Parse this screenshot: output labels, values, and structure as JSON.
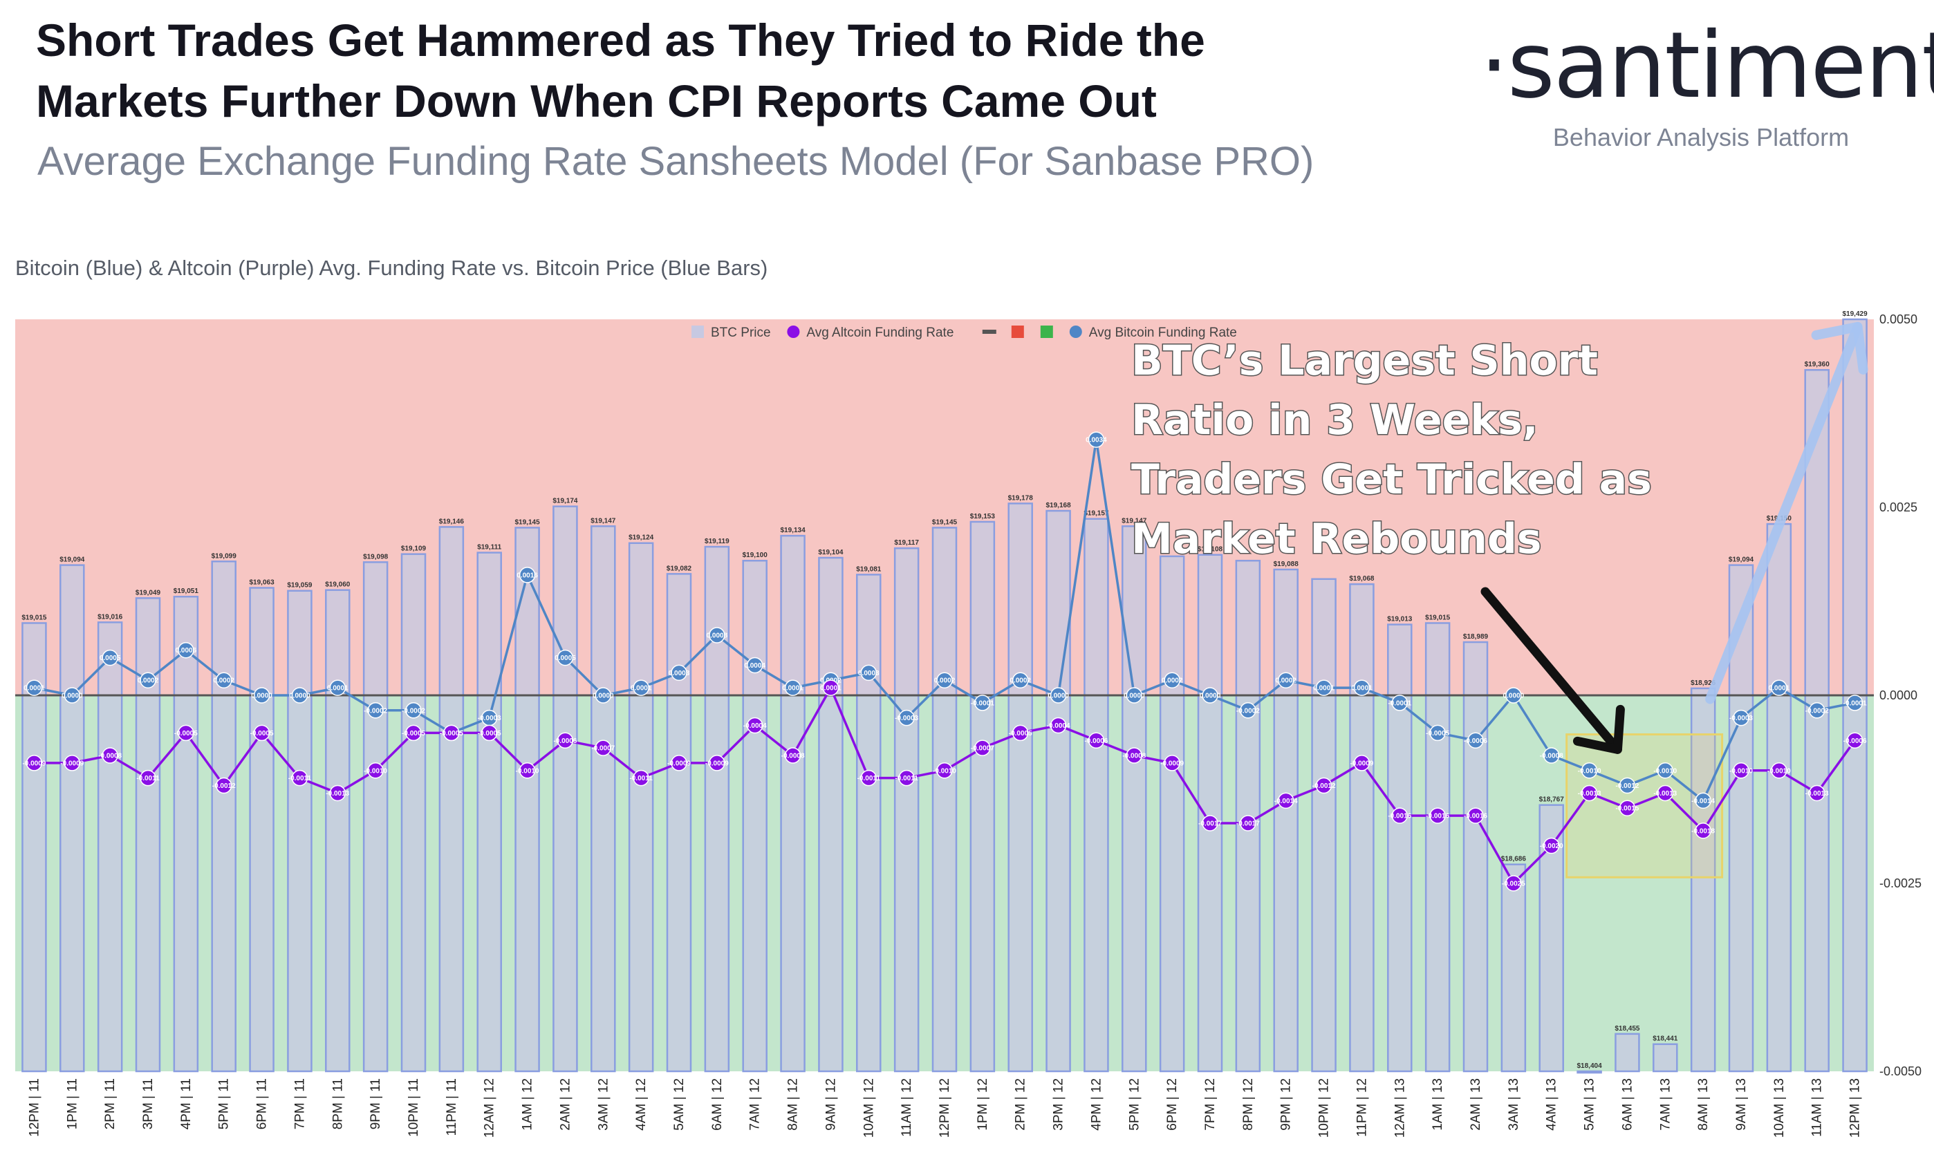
{
  "header": {
    "title": "Short Trades Get Hammered as They Tried to Ride the Markets Further Down When CPI Reports Came Out",
    "subtitle": "Average Exchange Funding Rate Sansheets Model (For Sanbase PRO)"
  },
  "brand": {
    "logo_text": "·santiment·",
    "tagline": "Behavior Analysis Platform"
  },
  "chart_caption": "Bitcoin (Blue) & Altcoin (Purple) Avg. Funding Rate vs. Bitcoin Price (Blue Bars)",
  "annotation": {
    "lines": [
      "BTC’s Largest Short",
      "Ratio in 3 Weeks,",
      "Traders Get Tricked as",
      "Market Rebounds"
    ]
  },
  "colors": {
    "positive_zone": "#f7c6c3",
    "negative_zone": "#c3e6cc",
    "bar_fill": "#c7c9e2",
    "bar_stroke": "#8a9ee0",
    "btc_line": "#4f86c6",
    "alt_line": "#8a0fe6",
    "zero_line": "#555555",
    "highlight_box": "#e8d36a",
    "arrow": "#111111",
    "trend_arrow": "#a6c4f2"
  },
  "chart_data": {
    "type": "bar",
    "categories": [
      "12PM | 11",
      "1PM | 11",
      "2PM | 11",
      "3PM | 11",
      "4PM | 11",
      "5PM | 11",
      "6PM | 11",
      "7PM | 11",
      "8PM | 11",
      "9PM | 11",
      "10PM | 11",
      "11PM | 11",
      "12AM | 12",
      "1AM | 12",
      "2AM | 12",
      "3AM | 12",
      "4AM | 12",
      "5AM | 12",
      "6AM | 12",
      "7AM | 12",
      "8AM | 12",
      "9AM | 12",
      "10AM | 12",
      "11AM | 12",
      "12PM | 12",
      "1PM | 12",
      "2PM | 12",
      "3PM | 12",
      "4PM | 12",
      "5PM | 12",
      "6PM | 12",
      "7PM | 12",
      "8PM | 12",
      "9PM | 12",
      "10PM | 12",
      "11PM | 12",
      "12AM | 13",
      "1AM | 13",
      "2AM | 13",
      "3AM | 13",
      "4AM | 13",
      "5AM | 13",
      "6AM | 13",
      "7AM | 13",
      "8AM | 13",
      "9AM | 13",
      "10AM | 13",
      "11AM | 13",
      "12PM | 13"
    ],
    "legend": [
      "BTC Price",
      "Avg Altcoin Funding Rate",
      "Avg Bitcoin Funding Rate"
    ],
    "y_right_ticks": [
      "0.0050",
      "0.0025",
      "0.0000",
      "-0.0025",
      "-0.0050"
    ],
    "y_right_range": [
      -0.005,
      0.005
    ],
    "btc_price_range": [
      18404,
      19429
    ],
    "btc_price": [
      19015,
      19094,
      19016,
      19049,
      19051,
      19099,
      19063,
      19059,
      19060,
      19098,
      19109,
      19146,
      19111,
      19145,
      19174,
      19147,
      19124,
      19082,
      19119,
      19100,
      19134,
      19104,
      19081,
      19117,
      19145,
      19153,
      19178,
      19168,
      19157,
      19147,
      19106,
      19108,
      19100,
      19088,
      19075,
      19068,
      19013,
      19015,
      18989,
      18686,
      18767,
      18404,
      18455,
      18441,
      18926,
      19094,
      19150,
      19360,
      19429
    ],
    "btc_price_labels": [
      "$19,015",
      "$19,094",
      "$19,016",
      "$19,049",
      "$19,051",
      "$19,099",
      "$19,063",
      "$19,059",
      "$19,060",
      "$19,098",
      "$19,109",
      "$19,146",
      "$19,111",
      "$19,145",
      "$19,174",
      "$19,147",
      "$19,124",
      "$19,082",
      "$19,119",
      "$19,100",
      "$19,134",
      "$19,104",
      "$19,081",
      "$19,117",
      "$19,145",
      "$19,153",
      "$19,178",
      "$19,168",
      "$19,157",
      "$19,147",
      "",
      "$19,108",
      "",
      "$19,088",
      "",
      "$19,068",
      "$19,013",
      "$19,015",
      "$18,989",
      "$18,686",
      "$18,767",
      "$18,404",
      "$18,455",
      "$18,441",
      "$18,926",
      "$19,094",
      "$19,150",
      "$19,360",
      "$19,429"
    ],
    "series": [
      {
        "name": "Avg Bitcoin Funding Rate",
        "values": [
          0.0001,
          0.0,
          0.0005,
          0.0002,
          0.0006,
          0.0002,
          0.0,
          0.0,
          0.0001,
          -0.0002,
          -0.0002,
          -0.0005,
          -0.0003,
          0.0016,
          0.0005,
          0.0,
          0.0001,
          0.0003,
          0.0008,
          0.0004,
          0.0001,
          0.0002,
          0.0003,
          -0.0003,
          0.0002,
          -0.0001,
          0.0002,
          0.0,
          0.0034,
          0.0,
          0.0002,
          0.0,
          -0.0002,
          0.0002,
          0.0001,
          0.0001,
          -0.0001,
          -0.0005,
          -0.0006,
          0.0,
          -0.0008,
          -0.001,
          -0.0012,
          -0.001,
          -0.0014,
          -0.0003,
          0.0001,
          -0.0002,
          -0.0001
        ]
      },
      {
        "name": "Avg Altcoin Funding Rate",
        "values": [
          -0.0009,
          -0.0009,
          -0.0008,
          -0.0011,
          -0.0005,
          -0.0012,
          -0.0005,
          -0.0011,
          -0.0013,
          -0.001,
          -0.0005,
          -0.0005,
          -0.0005,
          -0.001,
          -0.0006,
          -0.0007,
          -0.0011,
          -0.0009,
          -0.0009,
          -0.0004,
          -0.0008,
          0.0001,
          -0.0011,
          -0.0011,
          -0.001,
          -0.0007,
          -0.0005,
          -0.0004,
          -0.0006,
          -0.0008,
          -0.0009,
          -0.0017,
          -0.0017,
          -0.0014,
          -0.0012,
          -0.0009,
          -0.0016,
          -0.0016,
          -0.0016,
          -0.0025,
          -0.002,
          -0.0013,
          -0.0015,
          -0.0013,
          -0.0018,
          -0.001,
          -0.001,
          -0.0013,
          -0.0006
        ]
      }
    ]
  }
}
